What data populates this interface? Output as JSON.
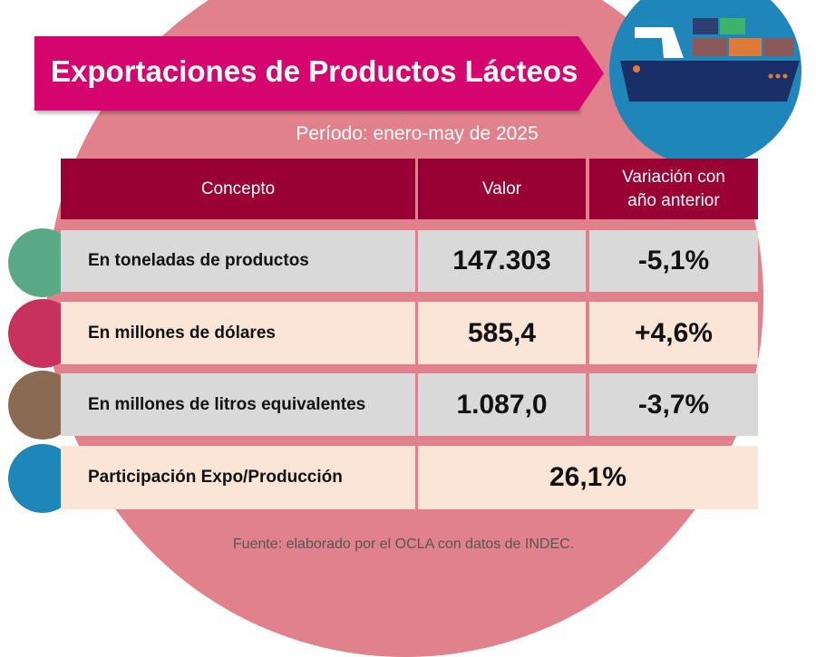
{
  "title": "Exportaciones de Productos Lácteos",
  "period": "Período: enero-may de 2025",
  "table": {
    "headers": [
      "Concepto",
      "Valor",
      "Variación con año anterior"
    ],
    "rows": [
      {
        "concepto": "En toneladas de productos",
        "valor": "147.303",
        "variacion": "-5,1%",
        "icon": "dairy-products-icon",
        "icon_color": "#5aa985"
      },
      {
        "concepto": "En millones de dólares",
        "valor": "585,4",
        "variacion": "+4,6%",
        "icon": "money-hand-icon",
        "icon_color": "#c8305e"
      },
      {
        "concepto": "En millones de litros equivalentes",
        "valor": "1.087,0",
        "variacion": "-3,7%",
        "icon": "milk-can-icon",
        "icon_color": "#8a6a52"
      },
      {
        "concepto": "Participación Expo/Producción",
        "valor": "26,1%",
        "icon": "dairy-factory-cow-icon",
        "icon_color": "#1e86b8"
      }
    ]
  },
  "footer": "Fuente: elaborado por el OCLA con datos de INDEC.",
  "colors": {
    "background_circle": "#e0818c",
    "banner": "#d6046e",
    "header": "#990033",
    "row_gray": "#d9d9d9",
    "row_peach": "#fbe5d6",
    "ship_circle": "#1e86b8"
  }
}
